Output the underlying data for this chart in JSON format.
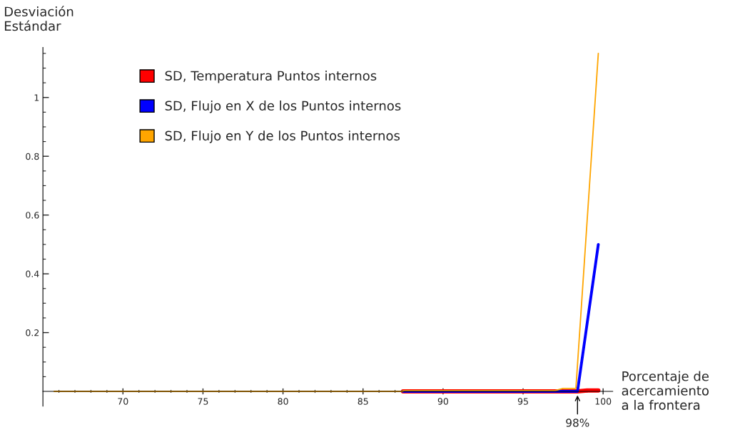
{
  "chart_data": {
    "type": "line",
    "ylabel": "Desviación\nEstándar",
    "xlabel": "Porcentaje de\nacercamiento\na la frontera",
    "xlim": [
      65,
      100.6
    ],
    "ylim": [
      -0.05,
      1.17
    ],
    "xticks": [
      {
        "value": 66,
        "label": null
      },
      {
        "value": 67,
        "label": null
      },
      {
        "value": 68,
        "label": null
      },
      {
        "value": 69,
        "label": null
      },
      70,
      {
        "value": 71,
        "label": null
      },
      {
        "value": 72,
        "label": null
      },
      {
        "value": 73,
        "label": null
      },
      {
        "value": 74,
        "label": null
      },
      75,
      {
        "value": 76,
        "label": null
      },
      {
        "value": 77,
        "label": null
      },
      {
        "value": 78,
        "label": null
      },
      {
        "value": 79,
        "label": null
      },
      80,
      {
        "value": 81,
        "label": null
      },
      {
        "value": 82,
        "label": null
      },
      {
        "value": 83,
        "label": null
      },
      {
        "value": 84,
        "label": null
      },
      85,
      {
        "value": 86,
        "label": null
      },
      {
        "value": 87,
        "label": null
      },
      {
        "value": 88,
        "label": null
      },
      {
        "value": 89,
        "label": null
      },
      90,
      {
        "value": 91,
        "label": null
      },
      {
        "value": 92,
        "label": null
      },
      {
        "value": 93,
        "label": null
      },
      {
        "value": 94,
        "label": null
      },
      95,
      {
        "value": 96,
        "label": null
      },
      {
        "value": 97,
        "label": null
      },
      {
        "value": 98,
        "label": null
      },
      {
        "value": 99,
        "label": null
      },
      100
    ],
    "yticks": [
      {
        "value": 0.05,
        "label": null
      },
      {
        "value": 0.1,
        "label": null
      },
      {
        "value": 0.15,
        "label": null
      },
      0.2,
      {
        "value": 0.25,
        "label": null
      },
      {
        "value": 0.3,
        "label": null
      },
      {
        "value": 0.35,
        "label": null
      },
      0.4,
      {
        "value": 0.45,
        "label": null
      },
      {
        "value": 0.5,
        "label": null
      },
      {
        "value": 0.55,
        "label": null
      },
      0.6,
      {
        "value": 0.65,
        "label": null
      },
      {
        "value": 0.7,
        "label": null
      },
      {
        "value": 0.75,
        "label": null
      },
      0.8,
      {
        "value": 0.85,
        "label": null
      },
      {
        "value": 0.9,
        "label": null
      },
      {
        "value": 0.95,
        "label": null
      },
      1,
      {
        "value": 1.05,
        "label": null
      },
      {
        "value": 1.1,
        "label": null
      },
      {
        "value": 1.15,
        "label": null
      }
    ],
    "grid": false,
    "legend": "top left",
    "annotations": [
      {
        "text": "98%",
        "x": 98.4,
        "y": 0
      }
    ],
    "series": [
      {
        "name": "SD, Temperatura Puntos internos",
        "color": "#ff0000",
        "x": [
          87.5,
          98.4,
          99.0,
          99.7
        ],
        "values": [
          0,
          0,
          0.003,
          0.003
        ]
      },
      {
        "name": "SD, Flujo en X de los Puntos internos",
        "color": "#0000ff",
        "x": [
          87.5,
          98.4,
          99.7
        ],
        "values": [
          0,
          0,
          0.5
        ]
      },
      {
        "name": "SD, Flujo en Y de los Puntos internos",
        "color": "#ffa500",
        "x": [
          65.7,
          87.5,
          87.5,
          97.0,
          97.5,
          98.3,
          99.7
        ],
        "values": [
          0,
          0,
          0.003,
          0.003,
          0.01,
          0.01,
          1.15
        ]
      }
    ]
  }
}
